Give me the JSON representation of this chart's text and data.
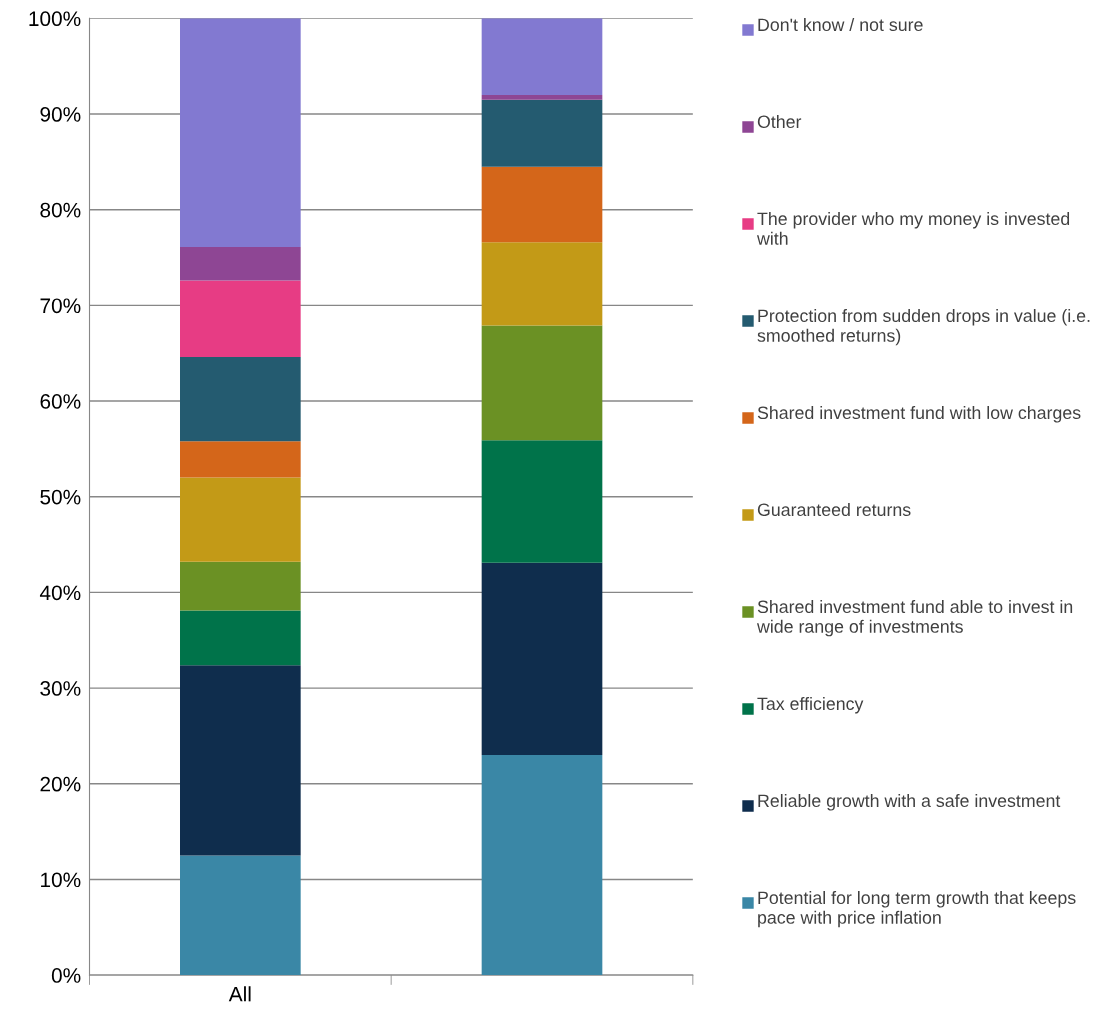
{
  "chart_data": {
    "type": "bar",
    "stacked": true,
    "categories": [
      "All",
      null
    ],
    "series": [
      {
        "name": "Potential for long term growth that keeps pace with price inflation",
        "color": "#3a87a6",
        "values": [
          12.5,
          23.0
        ]
      },
      {
        "name": "Reliable growth with a safe investment",
        "color": "#0f2d4d",
        "values": [
          19.9,
          20.1
        ]
      },
      {
        "name": "Tax efficiency",
        "color": "#00734a",
        "values": [
          5.7,
          12.8
        ]
      },
      {
        "name": "Shared investment fund able to invest in wide range of investments",
        "color": "#6b9124",
        "values": [
          5.1,
          12.0
        ]
      },
      {
        "name": "Guaranteed returns",
        "color": "#c39a17",
        "values": [
          8.8,
          8.7
        ]
      },
      {
        "name": "Shared investment fund with low charges",
        "color": "#d4661a",
        "values": [
          3.8,
          7.9
        ]
      },
      {
        "name": "Protection from sudden drops in value (i.e. smoothed returns)",
        "color": "#245b70",
        "values": [
          8.8,
          7.0
        ]
      },
      {
        "name": "The provider who my money is invested with",
        "color": "#e73c84",
        "values": [
          8.0,
          0
        ]
      },
      {
        "name": "Other",
        "color": "#8e4694",
        "values": [
          3.5,
          0.5
        ]
      },
      {
        "name": "Don't know / not sure",
        "color": "#8279d1",
        "values": [
          23.9,
          8.0
        ]
      }
    ],
    "ylim": [
      0,
      100
    ],
    "yticks": [
      {
        "value": 0,
        "label": "0%"
      },
      {
        "value": 10,
        "label": "10%"
      },
      {
        "value": 20,
        "label": "20%"
      },
      {
        "value": 30,
        "label": "30%"
      },
      {
        "value": 40,
        "label": "40%"
      },
      {
        "value": 50,
        "label": "50%"
      },
      {
        "value": 60,
        "label": "60%"
      },
      {
        "value": 70,
        "label": "70%"
      },
      {
        "value": 80,
        "label": "80%"
      },
      {
        "value": 90,
        "label": "90%"
      },
      {
        "value": 100,
        "label": "100%"
      }
    ],
    "grid": "y",
    "legend": "right"
  }
}
